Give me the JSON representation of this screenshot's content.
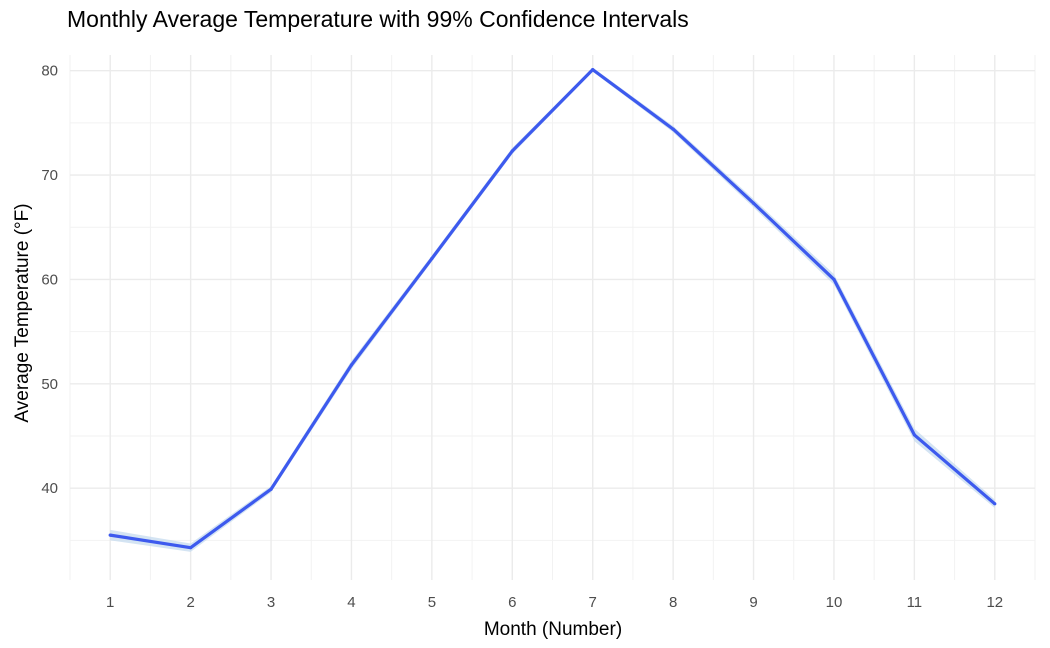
{
  "chart_data": {
    "type": "line",
    "title": "Monthly Average Temperature with 99% Confidence Intervals",
    "xlabel": "Month (Number)",
    "ylabel": "Average Temperature (°F)",
    "x": [
      1,
      2,
      3,
      4,
      5,
      6,
      7,
      8,
      9,
      10,
      11,
      12
    ],
    "x_tick_labels": [
      "1",
      "2",
      "3",
      "4",
      "5",
      "6",
      "7",
      "8",
      "9",
      "10",
      "11",
      "12"
    ],
    "y_ticks": [
      40,
      50,
      60,
      70,
      80
    ],
    "y_tick_labels": [
      "40",
      "50",
      "60",
      "70",
      "80"
    ],
    "xlim": [
      0.5,
      12.5
    ],
    "ylim": [
      31.2,
      81.5
    ],
    "grid": true,
    "series": [
      {
        "values": [
          35.5,
          34.3,
          39.9,
          51.8,
          62.0,
          72.3,
          80.1,
          74.4,
          67.3,
          60.0,
          45.1,
          38.5
        ],
        "ci_lower": [
          35.0,
          33.9,
          39.6,
          51.4,
          61.7,
          72.0,
          79.9,
          74.1,
          66.9,
          59.5,
          44.5,
          38.1
        ],
        "ci_upper": [
          36.0,
          34.7,
          40.2,
          52.2,
          62.3,
          72.6,
          80.3,
          74.7,
          67.7,
          60.5,
          45.7,
          38.9
        ],
        "color": "#3d5aee",
        "ci_color": "#c6dbef"
      }
    ]
  }
}
